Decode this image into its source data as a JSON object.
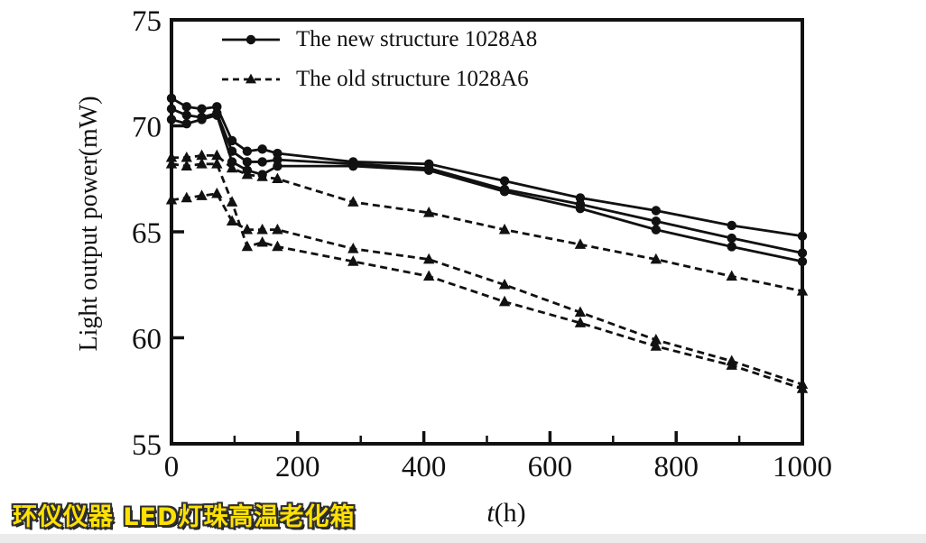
{
  "figure": {
    "ylabel": "Light output power(mW)",
    "xlabel_var": "t",
    "xlabel_rest": "(h)",
    "watermark": "环仪仪器 LED灯珠高温老化箱",
    "legend": [
      {
        "label": "The new structure 1028A8",
        "line": "solid",
        "marker": "circle"
      },
      {
        "label": "The old structure 1028A6",
        "line": "dashed",
        "marker": "triangle"
      }
    ],
    "colors": {
      "ink": "#111111",
      "watermark": "#ffe103",
      "watermark_outline": "#2f2f2f",
      "bottom_strip": "#ebebeb"
    }
  },
  "chart_data": {
    "type": "line",
    "title": "",
    "xlabel": "t(h)",
    "ylabel": "Light output power(mW)",
    "xlim": [
      0,
      1000
    ],
    "ylim": [
      55,
      75
    ],
    "xticks_major": [
      0,
      200,
      400,
      600,
      800,
      1000
    ],
    "xticks_minor": [
      100,
      300,
      500,
      700,
      900
    ],
    "yticks": [
      55,
      60,
      65,
      70,
      75
    ],
    "grid": false,
    "legend_position": "top-left-inside",
    "x": [
      0,
      24,
      48,
      72,
      96,
      120,
      144,
      168,
      288,
      408,
      528,
      648,
      768,
      888,
      1000
    ],
    "series": [
      {
        "name": "new-structure-1028A8-sample1",
        "group": "The new structure 1028A8",
        "line": "solid",
        "marker": "circle",
        "values": [
          71.3,
          70.9,
          70.8,
          70.9,
          69.3,
          68.8,
          68.9,
          68.7,
          68.3,
          68.2,
          67.4,
          66.6,
          66.0,
          65.3,
          64.8
        ]
      },
      {
        "name": "new-structure-1028A8-sample2",
        "group": "The new structure 1028A8",
        "line": "solid",
        "marker": "circle",
        "values": [
          70.8,
          70.5,
          70.4,
          70.6,
          68.8,
          68.3,
          68.3,
          68.4,
          68.2,
          68.0,
          67.0,
          66.3,
          65.5,
          64.7,
          64.0
        ]
      },
      {
        "name": "new-structure-1028A8-sample3",
        "group": "The new structure 1028A8",
        "line": "solid",
        "marker": "circle",
        "values": [
          70.3,
          70.1,
          70.3,
          70.5,
          68.3,
          67.9,
          67.7,
          68.1,
          68.1,
          67.9,
          66.9,
          66.1,
          65.1,
          64.3,
          63.6
        ]
      },
      {
        "name": "old-structure-1028A6-sample1",
        "group": "The old structure 1028A6",
        "line": "dashed",
        "marker": "triangle",
        "values": [
          68.5,
          68.5,
          68.6,
          68.6,
          68.0,
          67.7,
          67.6,
          67.5,
          66.4,
          65.9,
          65.1,
          64.4,
          63.7,
          62.9,
          62.2
        ]
      },
      {
        "name": "old-structure-1028A6-sample2",
        "group": "The old structure 1028A6",
        "line": "dashed",
        "marker": "triangle",
        "values": [
          68.2,
          68.1,
          68.2,
          68.2,
          66.4,
          64.3,
          64.5,
          64.3,
          63.6,
          62.9,
          61.7,
          60.7,
          59.6,
          58.7,
          57.6
        ]
      },
      {
        "name": "old-structure-1028A6-sample3",
        "group": "The old structure 1028A6",
        "line": "dashed",
        "marker": "triangle",
        "values": [
          66.5,
          66.6,
          66.7,
          66.8,
          65.5,
          65.1,
          65.1,
          65.1,
          64.2,
          63.7,
          62.5,
          61.2,
          59.9,
          58.9,
          57.8
        ]
      }
    ]
  }
}
